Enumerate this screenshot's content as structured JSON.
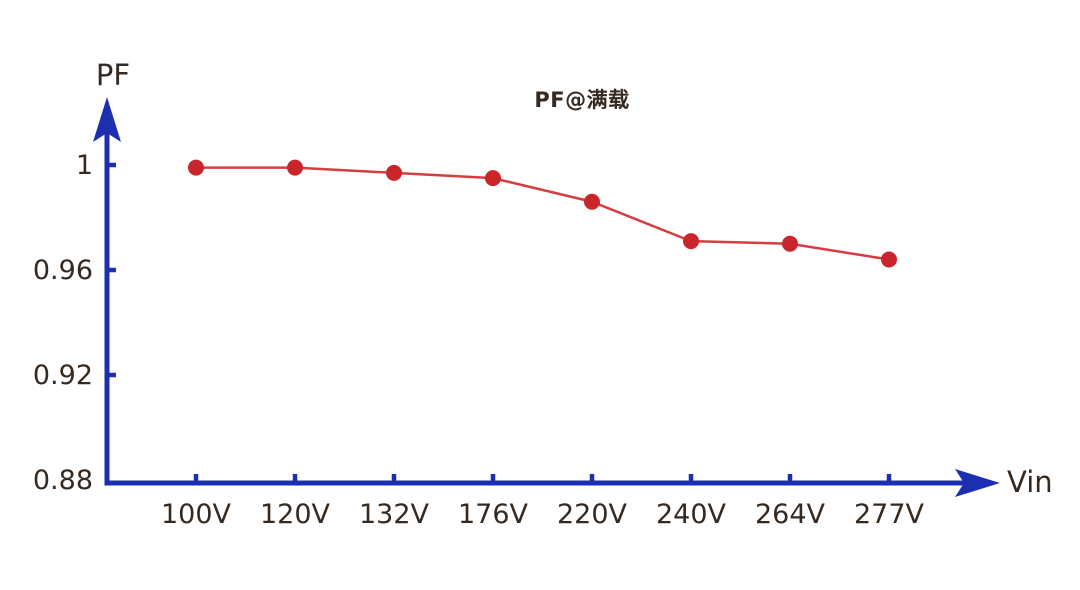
{
  "page": {
    "background": "#ffffff"
  },
  "chart_data": {
    "type": "line",
    "title": "PF@满载",
    "xlabel": "Vin",
    "ylabel": "PF",
    "categories": [
      "100V",
      "120V",
      "132V",
      "176V",
      "220V",
      "240V",
      "264V",
      "277V"
    ],
    "series": [
      {
        "name": "PF",
        "values": [
          0.999,
          0.999,
          0.997,
          0.995,
          0.986,
          0.971,
          0.97,
          0.964
        ]
      }
    ],
    "y_ticks": [
      1,
      0.96,
      0.92,
      0.88
    ],
    "y_tick_labels": [
      "1",
      "0.96",
      "0.92",
      "0.88"
    ],
    "ylim": [
      0.88,
      1.01
    ],
    "grid": false,
    "legend": "none",
    "marker": "circle",
    "colors": {
      "axis": "#1b2fb0",
      "line": "#d23e42",
      "marker": "#c9252b",
      "text": "#362a20"
    }
  }
}
